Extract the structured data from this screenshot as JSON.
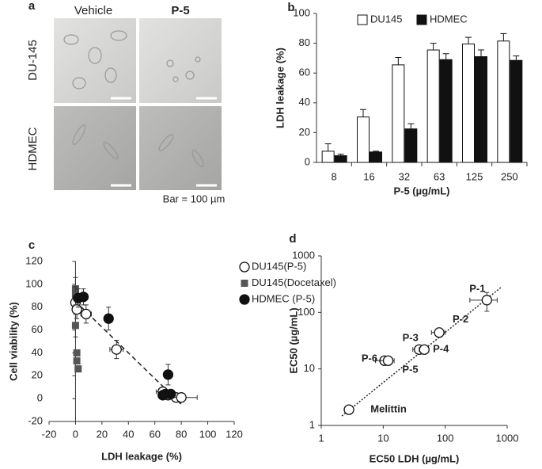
{
  "image_panel": {
    "label": "a",
    "columns": [
      "Vehicle",
      "P-5"
    ],
    "rows": [
      "DU-145",
      "HDMEC"
    ],
    "scale_note": "Bar = 100 µm"
  },
  "chart_data": [
    {
      "type": "bar",
      "label": "b",
      "ylabel": "LDH leakage (%)",
      "xlabel": "P-5 (µg/mL)",
      "categories": [
        "8",
        "16",
        "32",
        "63",
        "125",
        "250"
      ],
      "series": [
        {
          "name": "DU145",
          "color": "#ffffff",
          "values": [
            7.5,
            30.5,
            65.5,
            75.5,
            79.5,
            81.5
          ],
          "errors": [
            5,
            5,
            5,
            4.5,
            4.5,
            5
          ]
        },
        {
          "name": "HDMEC",
          "color": "#111111",
          "values": [
            4.5,
            7,
            22.5,
            69,
            71,
            68.5
          ],
          "errors": [
            1,
            0.5,
            3.5,
            4,
            4.5,
            3
          ]
        }
      ],
      "ylim": [
        0,
        100
      ],
      "yticks": [
        0,
        20,
        40,
        60,
        80,
        100
      ],
      "legend": "top"
    },
    {
      "type": "scatter",
      "label": "c",
      "ylabel": "Cell viability (%)",
      "xlabel": "LDH leakage (%)",
      "series": [
        {
          "name": "DU145(P-5)",
          "color": "#ffffff",
          "marker": "circle-open",
          "x": [
            0,
            1,
            8,
            31,
            66,
            70,
            76,
            80
          ],
          "values": [
            84,
            78,
            74,
            43,
            6,
            3,
            1,
            1
          ],
          "xerr": [
            1,
            2,
            4,
            5,
            5,
            4,
            6,
            12
          ],
          "yerr": [
            8,
            8,
            8,
            8,
            4,
            3,
            2,
            2
          ]
        },
        {
          "name": "DU145(Docetaxel)",
          "color": "#555555",
          "marker": "square",
          "x": [
            0,
            0,
            0,
            1,
            1,
            2
          ],
          "values": [
            96,
            90,
            64,
            40,
            33,
            26
          ],
          "xerr": [
            0,
            0,
            0,
            0,
            0,
            0
          ],
          "yerr": [
            10,
            8,
            10,
            0,
            0,
            0
          ]
        },
        {
          "name": "HDMEC (P-5)",
          "color": "#111111",
          "marker": "circle",
          "x": [
            2,
            6,
            25,
            70,
            68,
            72,
            66
          ],
          "values": [
            88,
            89,
            70,
            21,
            4,
            4,
            3
          ],
          "xerr": [
            1,
            1,
            3,
            3,
            3,
            3,
            3
          ],
          "yerr": [
            8,
            7,
            10,
            9,
            3,
            3,
            2
          ]
        }
      ],
      "trendline": {
        "x": [
          0,
          80
        ],
        "values": [
          85,
          -5
        ],
        "style": "dashed"
      },
      "xlim": [
        -20,
        120
      ],
      "xticks": [
        -20,
        0,
        20,
        40,
        60,
        80,
        100,
        120
      ],
      "ylim": [
        -20,
        120
      ],
      "yticks": [
        -20,
        0,
        20,
        40,
        60,
        80,
        100,
        120
      ],
      "legend": "top-right"
    },
    {
      "type": "scatter",
      "label": "d",
      "ylabel": "EC50 (µg/mL)",
      "xlabel": "EC50 LDH (µg/mL)",
      "xlog": true,
      "ylog": true,
      "series": [
        {
          "color": "#ffffff",
          "marker": "circle-open",
          "point_labels": [
            "P-1",
            "P-2",
            "P-3",
            "P-4",
            "P-6",
            "P-5",
            "Melittin"
          ],
          "x": [
            470,
            80,
            38,
            46,
            10.5,
            12,
            2.8
          ],
          "values": [
            165,
            44,
            22,
            22,
            14,
            14,
            1.9
          ],
          "xerr": [
            220,
            20,
            8,
            8,
            3,
            3,
            0.3
          ],
          "yerr": [
            60,
            5,
            3,
            3,
            2,
            2,
            0.2
          ]
        }
      ],
      "trendline": {
        "x": [
          2.15,
          820
        ],
        "values": [
          1.47,
          285
        ],
        "style": "dotted"
      },
      "xlim": [
        1,
        1000
      ],
      "xticks": [
        1,
        10,
        100,
        1000
      ],
      "ylim": [
        1,
        1000
      ],
      "yticks": [
        1,
        10,
        100,
        1000
      ]
    }
  ]
}
